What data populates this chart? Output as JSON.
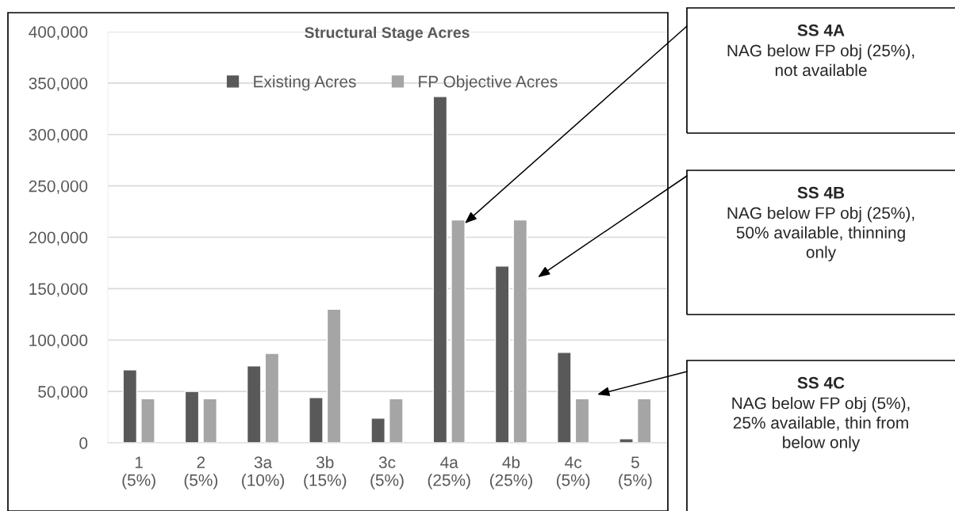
{
  "chart_data": {
    "type": "bar",
    "title": "Structural Stage Acres",
    "categories": [
      "1\n(5%)",
      "2\n(5%)",
      "3a\n(10%)",
      "3b\n(15%)",
      "3c\n(5%)",
      "4a\n(25%)",
      "4b\n(25%)",
      "4c\n(5%)",
      "5\n(5%)"
    ],
    "series": [
      {
        "name": "Existing Acres",
        "color": "#595959",
        "values": [
          71000,
          50000,
          75000,
          44000,
          24000,
          337000,
          172000,
          88000,
          4000
        ]
      },
      {
        "name": "FP Objective Acres",
        "color": "#a5a5a5",
        "values": [
          43000,
          43000,
          87000,
          130000,
          43000,
          217000,
          217000,
          43000,
          43000
        ]
      }
    ],
    "ylim": [
      0,
      400000
    ],
    "yticks": [
      {
        "value": 0,
        "label": "0"
      },
      {
        "value": 50000,
        "label": "50,000"
      },
      {
        "value": 100000,
        "label": "100,000"
      },
      {
        "value": 150000,
        "label": "150,000"
      },
      {
        "value": 200000,
        "label": "200,000"
      },
      {
        "value": 250000,
        "label": "250,000"
      },
      {
        "value": 300000,
        "label": "300,000"
      },
      {
        "value": 350000,
        "label": "350,000"
      },
      {
        "value": 400000,
        "label": "400,000"
      }
    ],
    "grid": "y",
    "legend": "top",
    "annotations": [
      "SS 4A\nNAG below FP obj (25%),\nnot available",
      "SS 4B\nNAG below FP obj (25%),\n50% available, thinning\nonly",
      "SS 4C\nNAG below FP obj (5%),\n25% available, thin from\nbelow only"
    ]
  }
}
